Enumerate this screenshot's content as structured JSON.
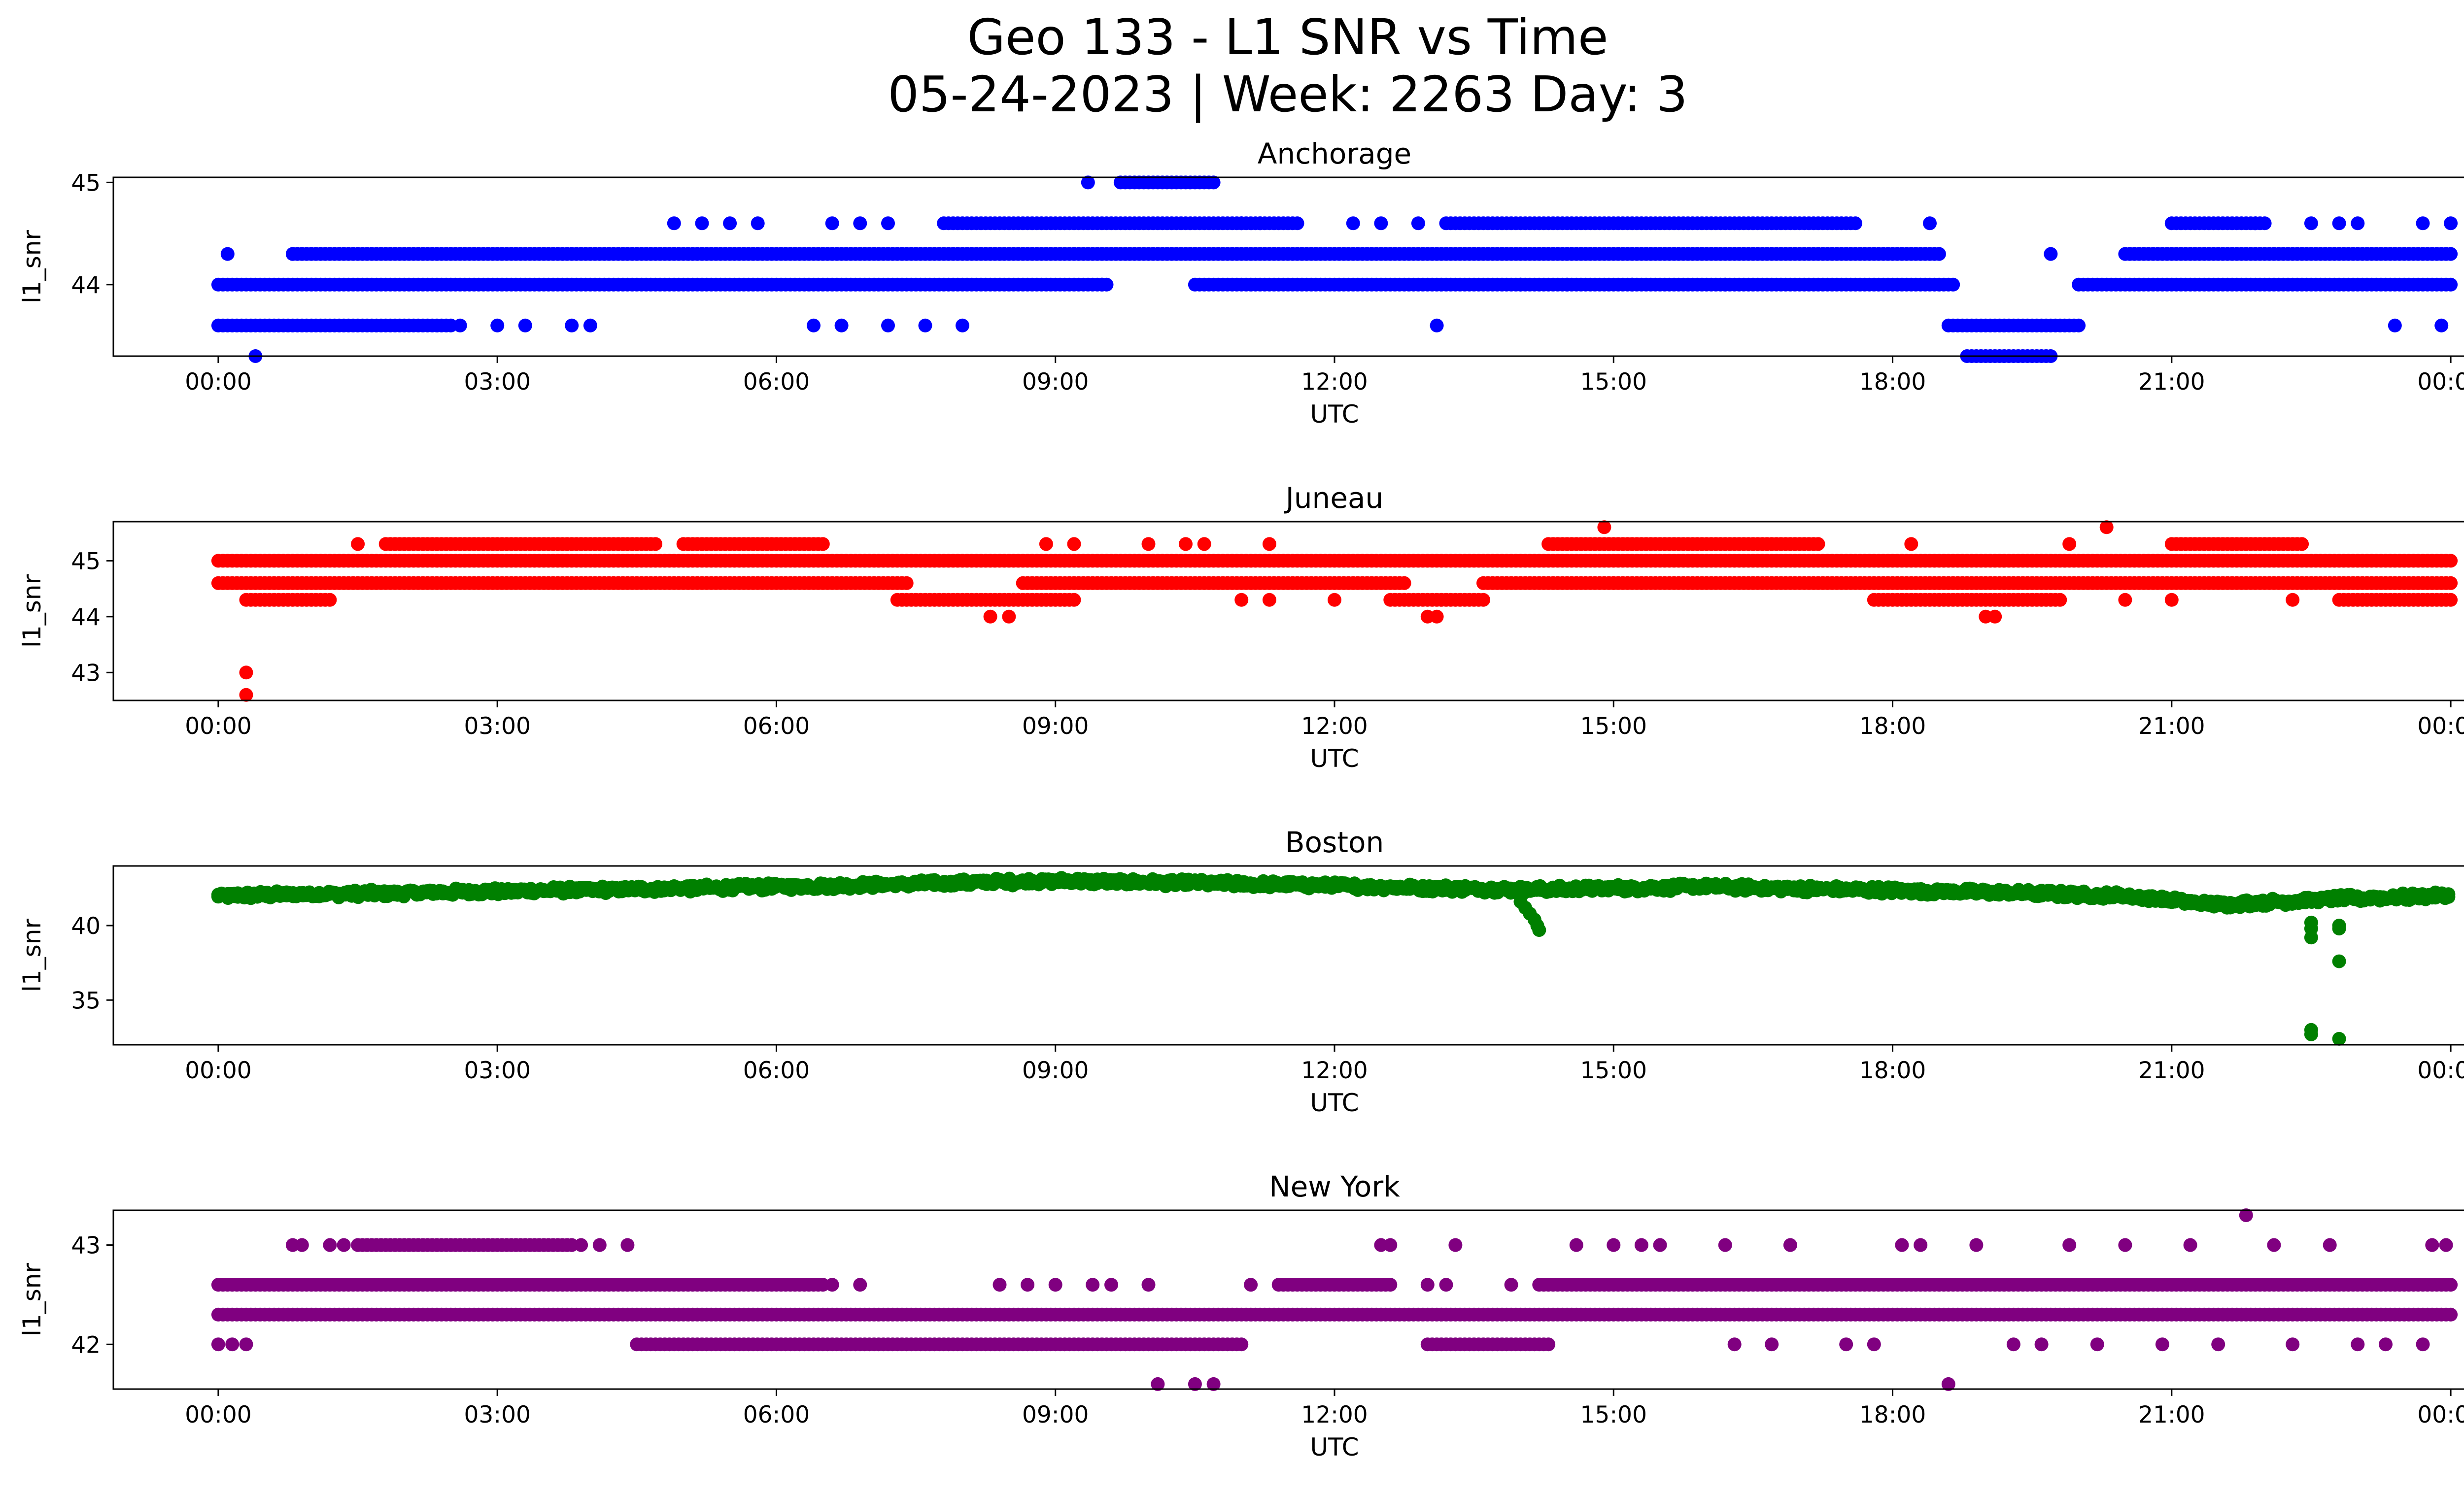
{
  "figure": {
    "title_line1": "Geo 133 - L1 SNR vs Time",
    "title_line2": "05-24-2023 | Week: 2263 Day: 3"
  },
  "chart_data": [
    {
      "type": "scatter",
      "title": "Anchorage",
      "xlabel": "UTC",
      "ylabel": "l1_snr",
      "color": "#0000ff",
      "xlim": [
        "00:00",
        "24:00"
      ],
      "ylim": [
        43.3,
        45.05
      ],
      "x_ticks": [
        "00:00",
        "03:00",
        "06:00",
        "09:00",
        "12:00",
        "15:00",
        "18:00",
        "21:00",
        "00:00"
      ],
      "y_ticks": [
        44,
        45
      ],
      "series": [
        {
          "segments": [
            {
              "y": 44.0,
              "from": 0.0,
              "to": 24.0,
              "gaps": [
                [
                  9.6,
                  10.5
                ],
                [
                  18.7,
                  20.0
                ]
              ]
            },
            {
              "y": 44.3,
              "from": 0.8,
              "to": 18.5
            },
            {
              "y": 44.3,
              "from": 20.5,
              "to": 24.0
            },
            {
              "y": 43.6,
              "from": 0.0,
              "to": 2.5
            },
            {
              "y": 43.6,
              "from": 18.6,
              "to": 20.0
            },
            {
              "y": 43.3,
              "from": 18.8,
              "to": 19.7
            },
            {
              "y": 44.6,
              "from": 7.8,
              "to": 11.6
            },
            {
              "y": 44.6,
              "from": 13.2,
              "to": 17.6
            },
            {
              "y": 44.6,
              "from": 21.0,
              "to": 22.0
            },
            {
              "y": 45.0,
              "from": 9.7,
              "to": 10.7
            }
          ]
        },
        {
          "points": [
            [
              0.1,
              44.3
            ],
            [
              0.4,
              43.3
            ],
            [
              0.8,
              44.3
            ],
            [
              2.6,
              43.6
            ],
            [
              3.0,
              43.6
            ],
            [
              3.3,
              43.6
            ],
            [
              3.8,
              43.6
            ],
            [
              4.0,
              43.6
            ],
            [
              4.9,
              44.6
            ],
            [
              5.2,
              44.6
            ],
            [
              5.5,
              44.6
            ],
            [
              5.8,
              44.6
            ],
            [
              6.4,
              43.6
            ],
            [
              6.6,
              44.6
            ],
            [
              6.7,
              43.6
            ],
            [
              6.9,
              44.6
            ],
            [
              7.2,
              43.6
            ],
            [
              7.2,
              44.6
            ],
            [
              7.6,
              43.6
            ],
            [
              8.0,
              43.6
            ],
            [
              9.35,
              45.0
            ],
            [
              9.5,
              44.0
            ],
            [
              11.0,
              44.6
            ],
            [
              11.2,
              44.6
            ],
            [
              12.2,
              44.6
            ],
            [
              12.5,
              44.6
            ],
            [
              12.9,
              44.6
            ],
            [
              13.1,
              43.6
            ],
            [
              14.0,
              44.0
            ],
            [
              14.5,
              44.0
            ],
            [
              15.2,
              44.0
            ],
            [
              16.2,
              44.0
            ],
            [
              18.4,
              44.6
            ],
            [
              19.7,
              44.3
            ],
            [
              21.9,
              44.6
            ],
            [
              22.5,
              44.6
            ],
            [
              22.8,
              44.6
            ],
            [
              23.0,
              44.6
            ],
            [
              23.4,
              43.6
            ],
            [
              23.7,
              44.6
            ],
            [
              23.9,
              43.6
            ],
            [
              24.0,
              44.6
            ]
          ]
        }
      ]
    },
    {
      "type": "scatter",
      "title": "Juneau",
      "xlabel": "UTC",
      "ylabel": "l1_snr",
      "color": "#ff0000",
      "xlim": [
        "00:00",
        "24:00"
      ],
      "ylim": [
        42.5,
        45.7
      ],
      "x_ticks": [
        "00:00",
        "03:00",
        "06:00",
        "09:00",
        "12:00",
        "15:00",
        "18:00",
        "21:00",
        "00:00"
      ],
      "y_ticks": [
        43,
        44,
        45
      ],
      "series": [
        {
          "segments": [
            {
              "y": 45.0,
              "from": 0.0,
              "to": 24.0
            },
            {
              "y": 44.6,
              "from": 0.0,
              "to": 24.0,
              "gaps": [
                [
                  7.4,
                  8.6
                ],
                [
                  12.8,
                  13.6
                ]
              ]
            },
            {
              "y": 44.3,
              "from": 0.3,
              "to": 1.2
            },
            {
              "y": 44.3,
              "from": 7.3,
              "to": 9.2
            },
            {
              "y": 44.3,
              "from": 12.6,
              "to": 13.6
            },
            {
              "y": 44.3,
              "from": 17.8,
              "to": 19.8
            },
            {
              "y": 44.3,
              "from": 22.8,
              "to": 24.0
            },
            {
              "y": 45.3,
              "from": 1.8,
              "to": 4.7
            },
            {
              "y": 45.3,
              "from": 5.0,
              "to": 6.5
            },
            {
              "y": 45.3,
              "from": 14.3,
              "to": 17.2
            },
            {
              "y": 45.3,
              "from": 21.0,
              "to": 22.4
            }
          ]
        },
        {
          "points": [
            [
              0.3,
              43.0
            ],
            [
              0.3,
              42.6
            ],
            [
              1.5,
              45.3
            ],
            [
              8.3,
              44.0
            ],
            [
              8.5,
              44.0
            ],
            [
              8.9,
              45.3
            ],
            [
              9.2,
              45.3
            ],
            [
              10.0,
              45.3
            ],
            [
              10.4,
              45.3
            ],
            [
              10.6,
              45.3
            ],
            [
              11.0,
              44.3
            ],
            [
              11.3,
              45.3
            ],
            [
              11.3,
              44.3
            ],
            [
              12.0,
              44.3
            ],
            [
              13.0,
              44.0
            ],
            [
              13.1,
              44.0
            ],
            [
              14.9,
              45.6
            ],
            [
              15.0,
              44.6
            ],
            [
              15.3,
              44.6
            ],
            [
              18.2,
              45.3
            ],
            [
              19.0,
              44.0
            ],
            [
              19.1,
              44.0
            ],
            [
              19.9,
              45.3
            ],
            [
              20.3,
              45.6
            ],
            [
              20.5,
              44.3
            ],
            [
              21.0,
              44.3
            ],
            [
              22.3,
              44.3
            ]
          ]
        }
      ]
    },
    {
      "type": "scatter",
      "title": "Boston",
      "xlabel": "UTC",
      "ylabel": "l1_snr",
      "color": "#008000",
      "xlim": [
        "00:00",
        "24:00"
      ],
      "ylim": [
        32.0,
        44.0
      ],
      "x_ticks": [
        "00:00",
        "03:00",
        "06:00",
        "09:00",
        "12:00",
        "15:00",
        "18:00",
        "21:00",
        "00:00"
      ],
      "y_ticks": [
        35,
        40
      ],
      "series": [
        {
          "trend": [
            [
              0.0,
              42.0
            ],
            [
              3.0,
              42.3
            ],
            [
              6.0,
              42.6
            ],
            [
              9.0,
              43.0
            ],
            [
              11.0,
              42.8
            ],
            [
              14.0,
              42.4
            ],
            [
              16.0,
              42.6
            ],
            [
              18.5,
              42.3
            ],
            [
              20.5,
              42.0
            ],
            [
              21.5,
              41.4
            ],
            [
              22.8,
              41.8
            ],
            [
              24.0,
              42.0
            ]
          ],
          "spread": 0.5
        },
        {
          "points": [
            [
              14.0,
              41.6
            ],
            [
              14.05,
              41.2
            ],
            [
              14.1,
              40.8
            ],
            [
              14.15,
              40.4
            ],
            [
              14.18,
              40.0
            ],
            [
              14.2,
              39.7
            ],
            [
              22.5,
              40.2
            ],
            [
              22.5,
              39.8
            ],
            [
              22.5,
              39.2
            ],
            [
              22.5,
              33.0
            ],
            [
              22.5,
              32.7
            ],
            [
              22.8,
              40.0
            ],
            [
              22.8,
              39.8
            ],
            [
              22.8,
              37.6
            ],
            [
              22.8,
              32.4
            ]
          ]
        }
      ]
    },
    {
      "type": "scatter",
      "title": "New York",
      "xlabel": "UTC",
      "ylabel": "l1_snr",
      "color": "#800080",
      "xlim": [
        "00:00",
        "24:00"
      ],
      "ylim": [
        41.55,
        43.35
      ],
      "x_ticks": [
        "00:00",
        "03:00",
        "06:00",
        "09:00",
        "12:00",
        "15:00",
        "18:00",
        "21:00",
        "00:00"
      ],
      "y_ticks": [
        42,
        43
      ],
      "series": [
        {
          "segments": [
            {
              "y": 42.3,
              "from": 0.0,
              "to": 24.0
            },
            {
              "y": 42.6,
              "from": 0.0,
              "to": 6.5
            },
            {
              "y": 42.6,
              "from": 11.4,
              "to": 12.6
            },
            {
              "y": 42.6,
              "from": 14.2,
              "to": 24.0
            },
            {
              "y": 42.0,
              "from": 4.5,
              "to": 11.0
            },
            {
              "y": 42.0,
              "from": 13.0,
              "to": 14.3
            },
            {
              "y": 43.0,
              "from": 1.5,
              "to": 3.8
            }
          ]
        },
        {
          "points": [
            [
              0.0,
              42.0
            ],
            [
              0.15,
              42.0
            ],
            [
              0.3,
              42.0
            ],
            [
              0.8,
              43.0
            ],
            [
              0.9,
              43.0
            ],
            [
              1.2,
              43.0
            ],
            [
              1.35,
              43.0
            ],
            [
              3.9,
              43.0
            ],
            [
              4.1,
              43.0
            ],
            [
              4.4,
              43.0
            ],
            [
              6.6,
              42.6
            ],
            [
              6.9,
              42.6
            ],
            [
              8.4,
              42.6
            ],
            [
              8.7,
              42.6
            ],
            [
              9.0,
              42.6
            ],
            [
              9.4,
              42.6
            ],
            [
              9.6,
              42.6
            ],
            [
              10.0,
              42.6
            ],
            [
              10.1,
              41.6
            ],
            [
              10.5,
              41.6
            ],
            [
              10.7,
              41.6
            ],
            [
              11.1,
              42.6
            ],
            [
              12.5,
              43.0
            ],
            [
              12.6,
              43.0
            ],
            [
              13.0,
              42.6
            ],
            [
              13.2,
              42.6
            ],
            [
              13.3,
              43.0
            ],
            [
              13.9,
              42.6
            ],
            [
              14.6,
              43.0
            ],
            [
              15.0,
              43.0
            ],
            [
              15.3,
              43.0
            ],
            [
              15.5,
              43.0
            ],
            [
              16.2,
              43.0
            ],
            [
              16.3,
              42.0
            ],
            [
              16.7,
              42.0
            ],
            [
              16.9,
              43.0
            ],
            [
              17.5,
              42.0
            ],
            [
              17.8,
              42.0
            ],
            [
              18.1,
              43.0
            ],
            [
              18.3,
              43.0
            ],
            [
              18.6,
              41.6
            ],
            [
              18.9,
              43.0
            ],
            [
              19.3,
              42.0
            ],
            [
              19.6,
              42.0
            ],
            [
              19.9,
              43.0
            ],
            [
              20.2,
              42.0
            ],
            [
              20.5,
              43.0
            ],
            [
              20.9,
              42.0
            ],
            [
              21.2,
              43.0
            ],
            [
              21.5,
              42.0
            ],
            [
              21.8,
              43.3
            ],
            [
              22.1,
              43.0
            ],
            [
              22.3,
              42.0
            ],
            [
              22.7,
              43.0
            ],
            [
              23.0,
              42.0
            ],
            [
              23.3,
              42.0
            ],
            [
              23.7,
              42.0
            ],
            [
              23.8,
              43.0
            ],
            [
              23.95,
              43.0
            ]
          ]
        }
      ]
    }
  ]
}
